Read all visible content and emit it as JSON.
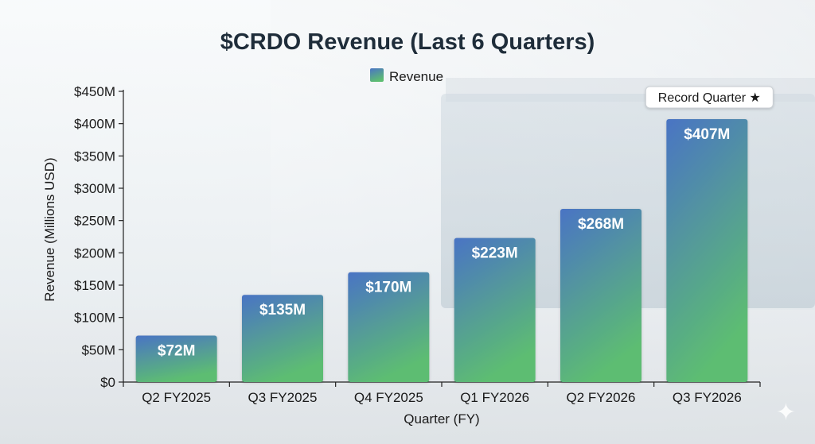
{
  "chart_data": {
    "type": "bar",
    "title": "$CRDO Revenue (Last 6 Quarters)",
    "xlabel": "Quarter (FY)",
    "ylabel": "Revenue (Millions USD)",
    "categories": [
      "Q2 FY2025",
      "Q3 FY2025",
      "Q4 FY2025",
      "Q1 FY2026",
      "Q2 FY2026",
      "Q3 FY2026"
    ],
    "series": [
      {
        "name": "Revenue",
        "values": [
          72,
          135,
          170,
          223,
          268,
          407
        ]
      }
    ],
    "data_labels": [
      "$72M",
      "$135M",
      "$170M",
      "$223M",
      "$268M",
      "$407M"
    ],
    "ylim": [
      0,
      450
    ],
    "yticks": [
      0,
      50,
      100,
      150,
      200,
      250,
      300,
      350,
      400,
      450
    ],
    "ytick_labels": [
      "$0",
      "$50M",
      "$100M",
      "$150M",
      "$200M",
      "$250M",
      "$300M",
      "$350M",
      "$400M",
      "$450M"
    ],
    "legend_position": "top-center",
    "grid": false,
    "annotation": {
      "text": "Record Quarter ★",
      "category": "Q3 FY2026"
    },
    "colors": {
      "bar_top": "#4a74c4",
      "bar_bottom": "#5dbd72",
      "title": "#1f2d3a"
    }
  },
  "decor": {
    "sparkle_icon": "✦"
  }
}
